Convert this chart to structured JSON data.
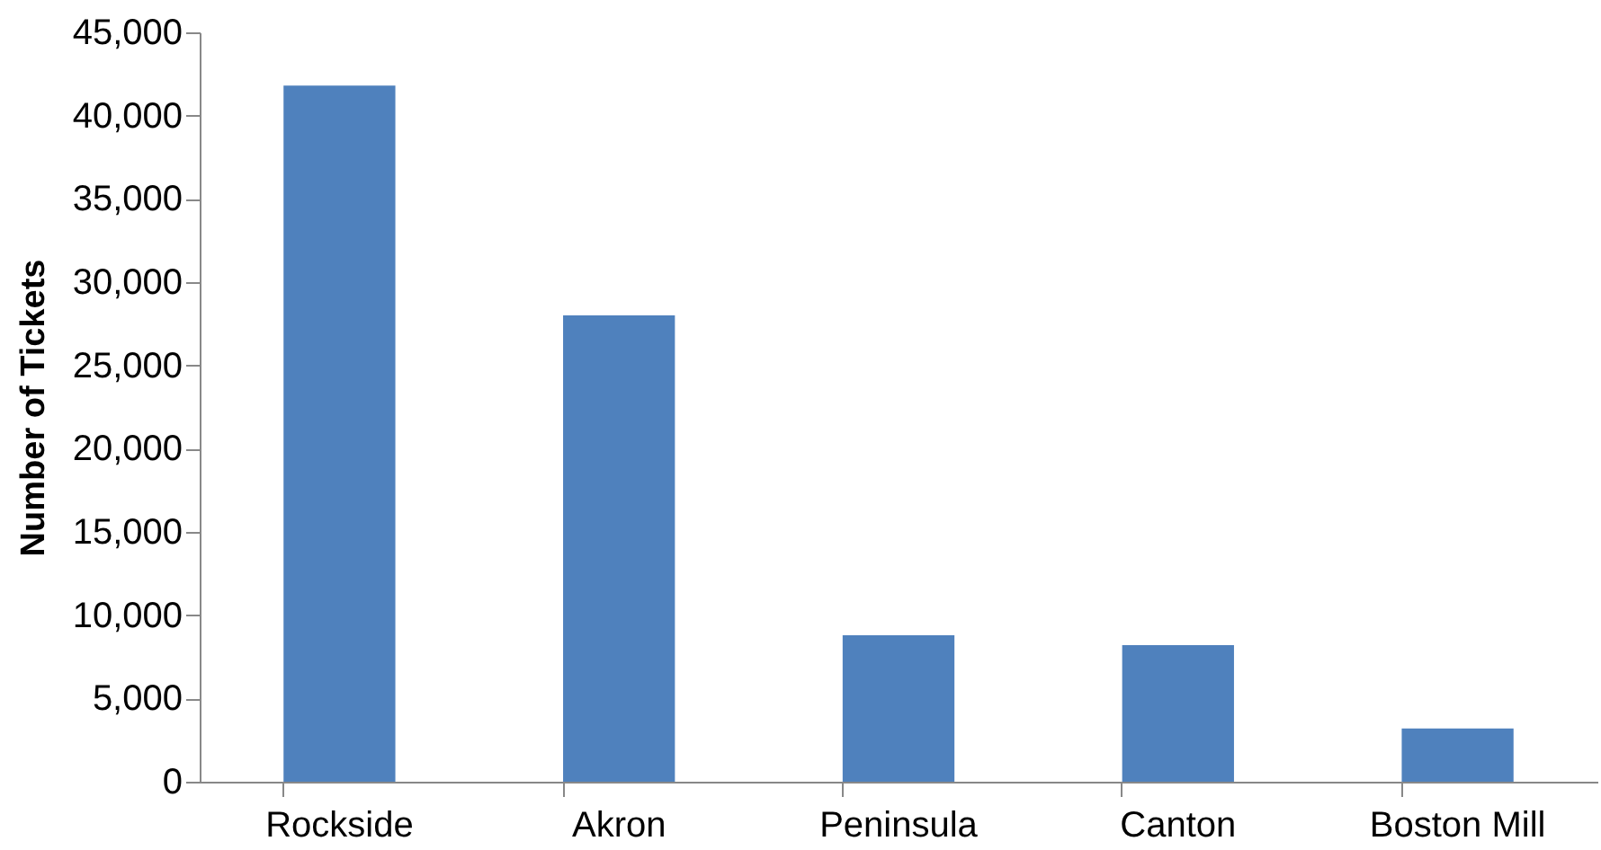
{
  "chart_data": {
    "type": "bar",
    "ylabel": "Number of Tickets",
    "categories": [
      "Rockside",
      "Akron",
      "Peninsula",
      "Canton",
      "Boston Mill"
    ],
    "values": [
      41800,
      28000,
      8800,
      8200,
      3200
    ],
    "color": "#4f81bd",
    "ylim": [
      0,
      45000
    ],
    "yticks": [
      0,
      {
        "value": 5000,
        "label": "5,000"
      },
      {
        "value": 10000,
        "label": "10,000"
      },
      {
        "value": 15000,
        "label": "15,000"
      },
      {
        "value": 20000,
        "label": "20,000"
      },
      {
        "value": 25000,
        "label": "25,000"
      },
      {
        "value": 30000,
        "label": "30,000"
      },
      {
        "value": 35000,
        "label": "35,000"
      },
      {
        "value": 40000,
        "label": "40,000"
      },
      {
        "value": 45000,
        "label": "45,000"
      }
    ],
    "grid": false
  }
}
